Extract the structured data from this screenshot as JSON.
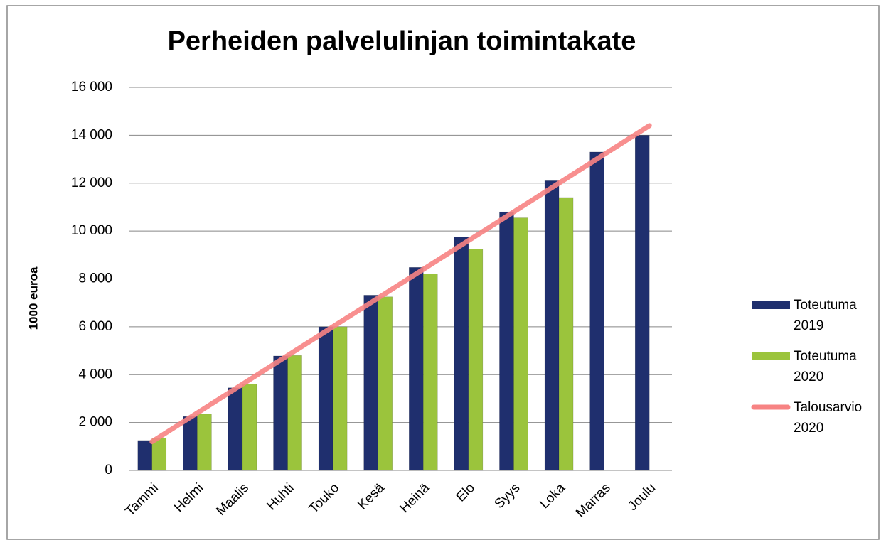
{
  "chart_data": {
    "type": "bar",
    "title": "Perheiden palvelulinjan toimintakate",
    "y_label": "1000 euroa",
    "categories": [
      "Tammi",
      "Helmi",
      "Maalis",
      "Huhti",
      "Touko",
      "Kesä",
      "Heinä",
      "Elo",
      "Syys",
      "Loka",
      "Marras",
      "Joulu"
    ],
    "series": [
      {
        "name": "Toteutuma 2019",
        "type": "bar",
        "color": "#1f2f6e",
        "values": [
          1250,
          2250,
          3450,
          4780,
          6000,
          7320,
          8480,
          9750,
          10800,
          12100,
          13300,
          14000
        ]
      },
      {
        "name": "Toteutuma 2020",
        "type": "bar",
        "color": "#9bc43c",
        "values": [
          1350,
          2350,
          3600,
          4800,
          6000,
          7250,
          8200,
          9250,
          10550,
          11400,
          null,
          null
        ]
      },
      {
        "name": "Talousarvio 2020",
        "type": "line",
        "color": "#f78383",
        "values": [
          1200,
          2400,
          3600,
          4800,
          6000,
          7200,
          8400,
          9600,
          10800,
          12000,
          13200,
          14400
        ]
      }
    ],
    "ylim": [
      0,
      16000
    ],
    "yticks": [
      0,
      {
        "value": 2000,
        "label": "2 000"
      },
      {
        "value": 4000,
        "label": "4 000"
      },
      {
        "value": 6000,
        "label": "6 000"
      },
      {
        "value": 8000,
        "label": "8 000"
      },
      {
        "value": 10000,
        "label": "10 000"
      },
      {
        "value": 12000,
        "label": "12 000"
      },
      {
        "value": 14000,
        "label": "14 000"
      },
      {
        "value": 16000,
        "label": "16 000"
      }
    ],
    "grid": true,
    "legend": "right"
  }
}
